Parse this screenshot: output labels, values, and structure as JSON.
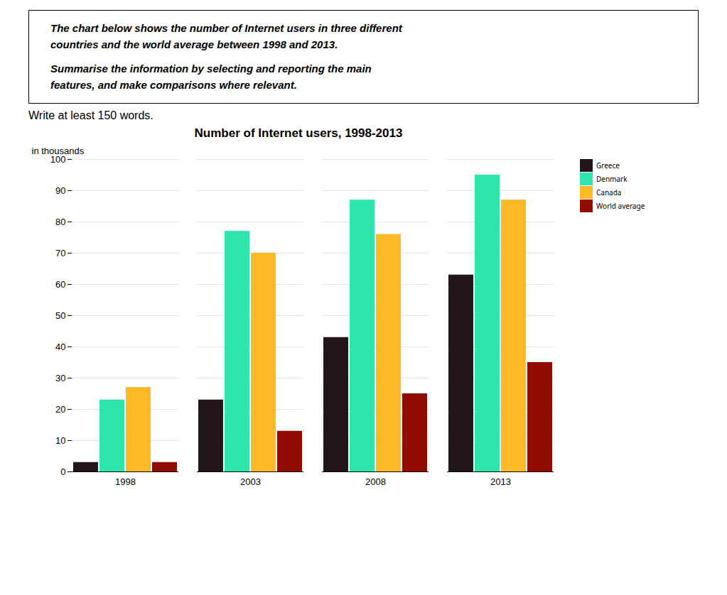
{
  "chart_data": {
    "type": "bar",
    "title": "Number of Internet users, 1998-2013",
    "ylabel": "in thousands",
    "annotations": [
      "The chart below shows the number of Internet users in three different\ncountries and the world average between 1998 and 2013.",
      "Summarise the information by selecting and reporting the main\nfeatures, and make comparisons where relevant.",
      "Write at least 150 words."
    ],
    "categories": [
      "1998",
      "2003",
      "2008",
      "2013"
    ],
    "series": [
      {
        "name": "Greece",
        "values": [
          3,
          23,
          43,
          63
        ]
      },
      {
        "name": "Denmark",
        "values": [
          23,
          77,
          87,
          95
        ]
      },
      {
        "name": "Canada",
        "values": [
          27,
          70,
          76,
          87
        ]
      },
      {
        "name": "World average",
        "values": [
          3,
          13,
          25,
          35
        ]
      }
    ],
    "ylim": [
      0,
      100
    ],
    "yticks": [
      0,
      10,
      20,
      30,
      40,
      50,
      60,
      70,
      80,
      90,
      100
    ],
    "grid": true,
    "legend": "right"
  }
}
